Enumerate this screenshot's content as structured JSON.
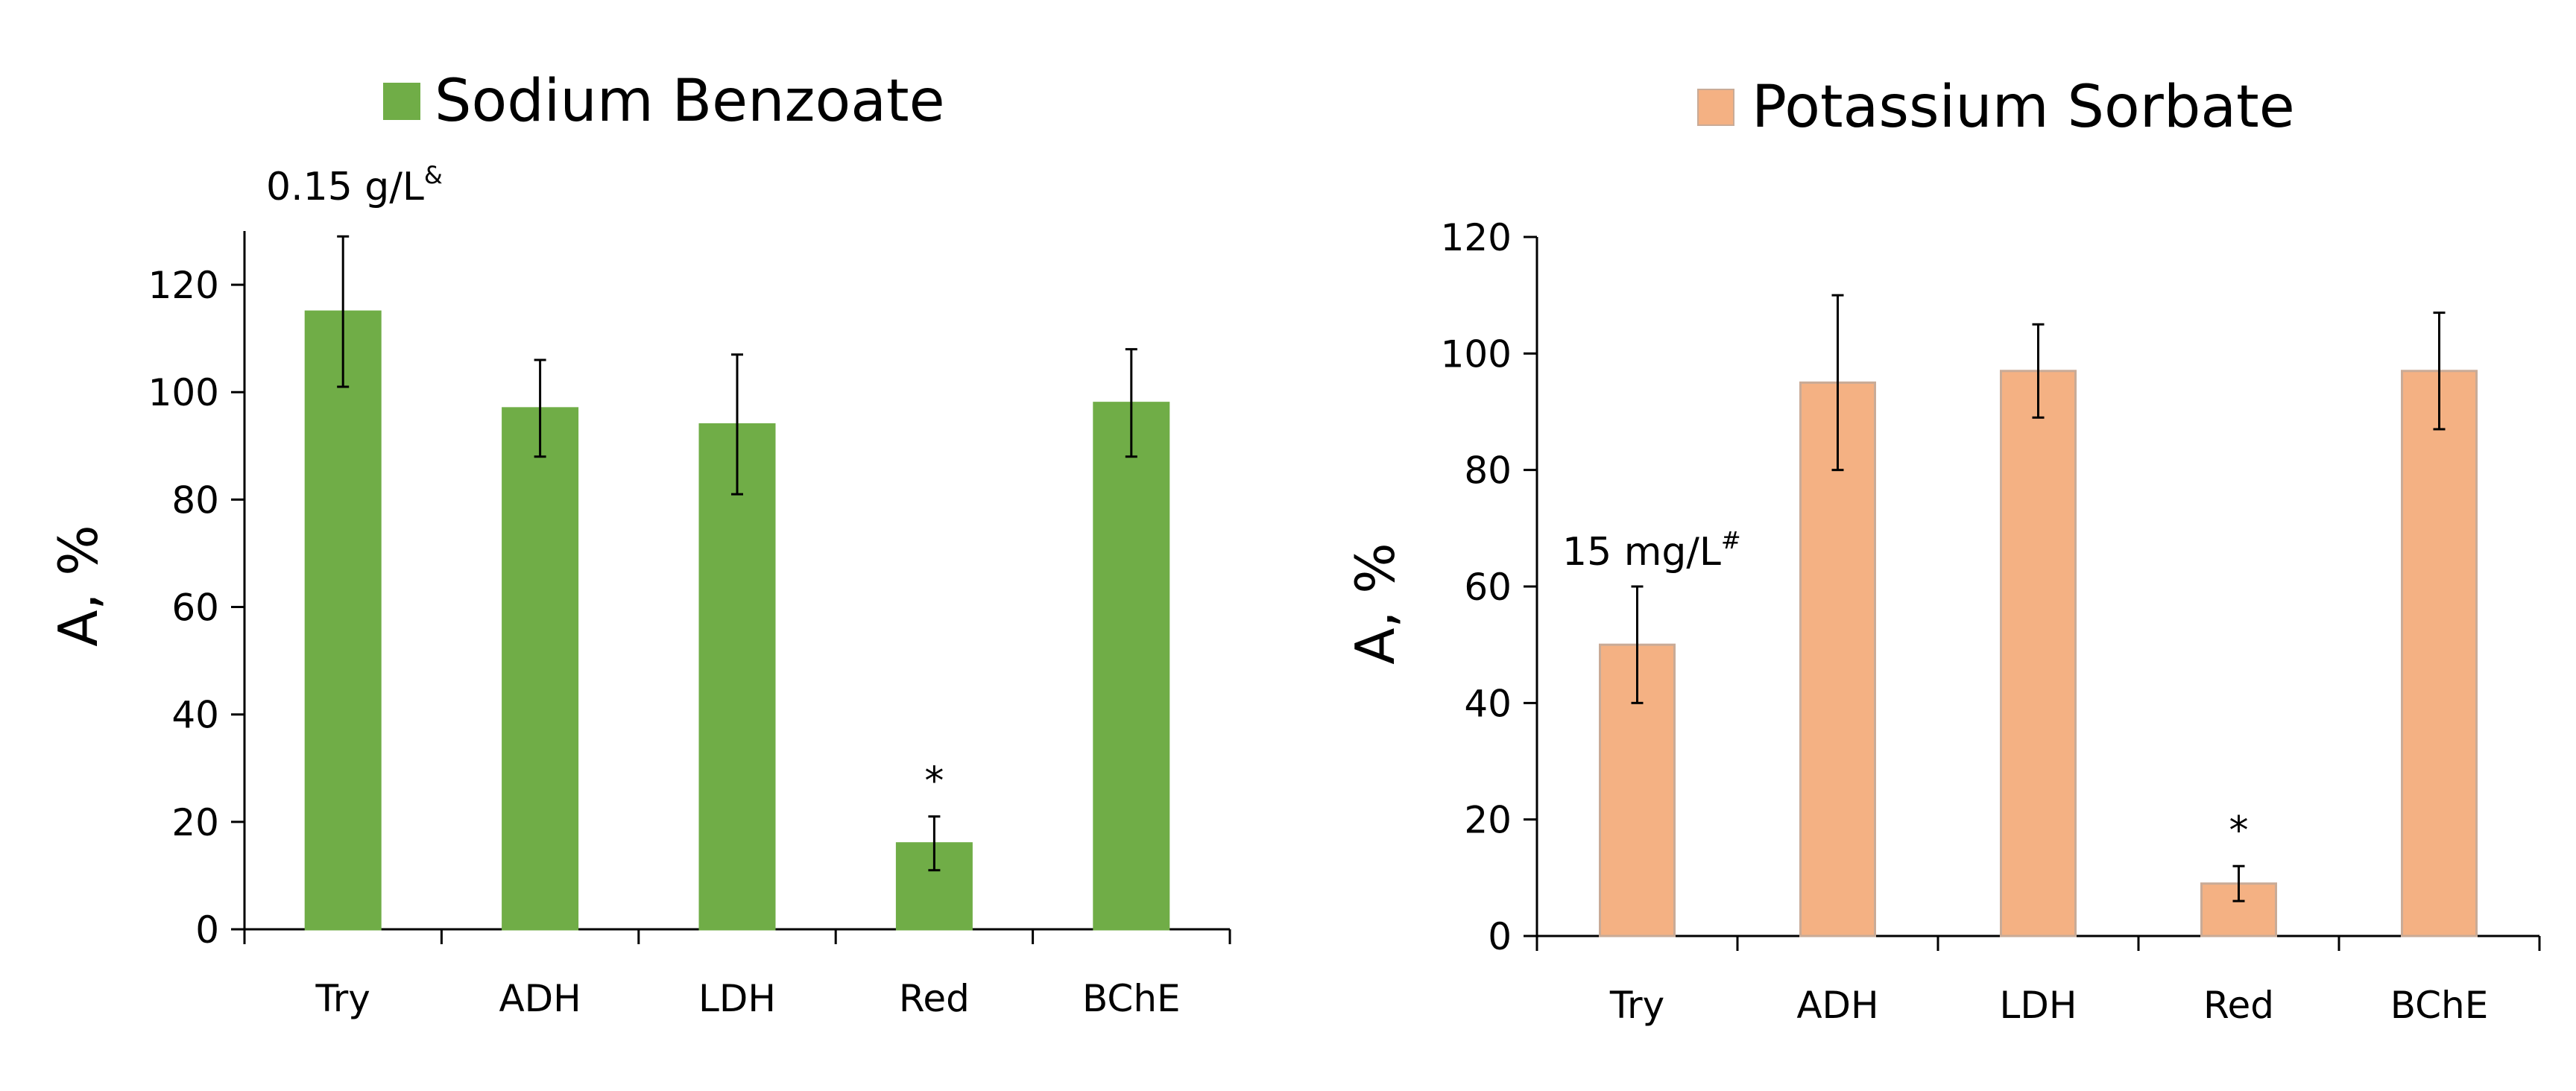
{
  "chart_data": [
    {
      "type": "bar",
      "title": "Sodium Benzoate",
      "legend": {
        "label": "Sodium Benzoate",
        "position": "top-center"
      },
      "color": "#70ad47",
      "edge_color": "#70ad47",
      "categories": [
        "Try",
        "ADH",
        "LDH",
        "Red",
        "BChE"
      ],
      "values": [
        115,
        97,
        94,
        16,
        98
      ],
      "error_bars": [
        14,
        9,
        13,
        5,
        10
      ],
      "significance": [
        "",
        "",
        "",
        "*",
        ""
      ],
      "xlabel": "",
      "ylabel": "A, %",
      "ylim": [
        0,
        130
      ],
      "yticks": [
        0,
        20,
        40,
        60,
        80,
        100,
        120
      ],
      "grid": false,
      "annotation": {
        "text": "0.15 g/L",
        "sup": "&"
      }
    },
    {
      "type": "bar",
      "title": "Potassium Sorbate",
      "legend": {
        "label": "Potassium Sorbate",
        "position": "top-center"
      },
      "color": "#f4b183",
      "edge_color": "#c9ab97",
      "categories": [
        "Try",
        "ADH",
        "LDH",
        "Red",
        "BChE"
      ],
      "values": [
        50,
        95,
        97,
        9,
        97
      ],
      "error_bars": [
        10,
        15,
        8,
        3,
        10
      ],
      "significance": [
        "",
        "",
        "",
        "*",
        ""
      ],
      "xlabel": "",
      "ylabel": "A, %",
      "ylim": [
        0,
        120
      ],
      "yticks": [
        0,
        20,
        40,
        60,
        80,
        100,
        120
      ],
      "grid": false,
      "annotation": {
        "text": "15 mg/L",
        "sup": "#"
      }
    }
  ]
}
